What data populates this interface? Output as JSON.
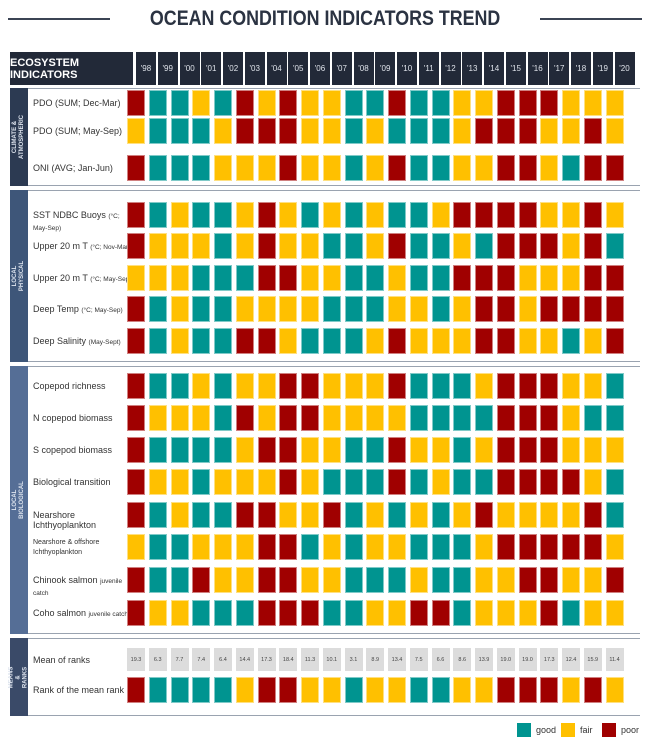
{
  "title": "OCEAN CONDITION INDICATORS TREND",
  "chart_data": {
    "type": "heatmap",
    "title": "OCEAN CONDITION INDICATORS TREND",
    "header_label": "ECOSYSTEM INDICATORS",
    "years": [
      "'98",
      "'99",
      "'00",
      "'01",
      "'02",
      "'03",
      "'04",
      "'05",
      "'06",
      "'07",
      "'08",
      "'09",
      "'10",
      "'11",
      "'12",
      "'13",
      "'14",
      "'15",
      "'16",
      "'17",
      "'18",
      "'19",
      "'20"
    ],
    "colors": {
      "good": "#009490",
      "fair": "#ffc000",
      "poor": "#a00000"
    },
    "legend": [
      {
        "key": "good",
        "label": "good"
      },
      {
        "key": "fair",
        "label": "fair"
      },
      {
        "key": "poor",
        "label": "poor"
      }
    ],
    "sections": [
      {
        "name": "CLIMATE & ATMOSPHERIC",
        "rows": [
          {
            "label": "PDO (SUM; Dec-Mar)",
            "sub": "",
            "values": [
              "poor",
              "good",
              "good",
              "fair",
              "good",
              "poor",
              "fair",
              "poor",
              "fair",
              "fair",
              "good",
              "good",
              "poor",
              "good",
              "good",
              "fair",
              "fair",
              "poor",
              "poor",
              "poor",
              "fair",
              "fair",
              "fair"
            ]
          },
          {
            "label": "PDO (SUM; May-Sep)",
            "sub": "",
            "values": [
              "fair",
              "good",
              "good",
              "good",
              "fair",
              "poor",
              "poor",
              "poor",
              "fair",
              "fair",
              "good",
              "fair",
              "good",
              "good",
              "good",
              "fair",
              "poor",
              "poor",
              "poor",
              "fair",
              "fair",
              "poor",
              "fair"
            ]
          },
          {
            "label": "ONI (AVG; Jan-Jun)",
            "sub": "",
            "values": [
              "poor",
              "good",
              "good",
              "good",
              "fair",
              "fair",
              "fair",
              "poor",
              "fair",
              "fair",
              "good",
              "fair",
              "poor",
              "good",
              "good",
              "fair",
              "fair",
              "poor",
              "poor",
              "fair",
              "good",
              "poor",
              "poor"
            ]
          }
        ]
      },
      {
        "name": "LOCAL PHYSICAL",
        "rows": [
          {
            "label": "SST NDBC Buoys",
            "sub": "(°C; May-Sep)",
            "values": [
              "poor",
              "good",
              "fair",
              "good",
              "good",
              "fair",
              "poor",
              "fair",
              "good",
              "fair",
              "good",
              "fair",
              "good",
              "good",
              "fair",
              "poor",
              "poor",
              "poor",
              "poor",
              "fair",
              "fair",
              "poor",
              "fair"
            ]
          },
          {
            "label": "Upper 20 m T",
            "sub": "(°C; Nov-Mar)",
            "values": [
              "poor",
              "fair",
              "fair",
              "fair",
              "good",
              "fair",
              "poor",
              "fair",
              "fair",
              "good",
              "good",
              "fair",
              "poor",
              "good",
              "good",
              "fair",
              "good",
              "poor",
              "poor",
              "poor",
              "fair",
              "poor",
              "good"
            ]
          },
          {
            "label": "Upper 20 m T",
            "sub": "(°C; May-Sep)",
            "values": [
              "fair",
              "fair",
              "fair",
              "good",
              "good",
              "good",
              "poor",
              "poor",
              "fair",
              "fair",
              "good",
              "good",
              "fair",
              "good",
              "good",
              "poor",
              "poor",
              "poor",
              "fair",
              "fair",
              "fair",
              "poor",
              "poor"
            ]
          },
          {
            "label": "Deep Temp",
            "sub": "(°C; May-Sep)",
            "values": [
              "poor",
              "good",
              "fair",
              "good",
              "good",
              "fair",
              "fair",
              "fair",
              "fair",
              "good",
              "good",
              "good",
              "fair",
              "fair",
              "good",
              "fair",
              "poor",
              "poor",
              "fair",
              "poor",
              "poor",
              "poor",
              "poor"
            ]
          },
          {
            "label": "Deep Salinity",
            "sub": "(May-Sept)",
            "values": [
              "poor",
              "good",
              "fair",
              "good",
              "good",
              "poor",
              "poor",
              "fair",
              "good",
              "good",
              "good",
              "fair",
              "poor",
              "fair",
              "fair",
              "fair",
              "poor",
              "poor",
              "fair",
              "fair",
              "good",
              "fair",
              "poor"
            ]
          }
        ]
      },
      {
        "name": "LOCAL BIOLOGICAL",
        "rows": [
          {
            "label": "Copepod richness",
            "sub": "",
            "values": [
              "poor",
              "good",
              "good",
              "fair",
              "good",
              "fair",
              "fair",
              "poor",
              "poor",
              "fair",
              "fair",
              "fair",
              "poor",
              "good",
              "good",
              "good",
              "fair",
              "poor",
              "poor",
              "poor",
              "fair",
              "fair",
              "good"
            ]
          },
          {
            "label": "N copepod biomass",
            "sub": "",
            "values": [
              "poor",
              "fair",
              "fair",
              "fair",
              "good",
              "poor",
              "fair",
              "poor",
              "poor",
              "fair",
              "fair",
              "fair",
              "fair",
              "good",
              "good",
              "good",
              "good",
              "poor",
              "poor",
              "poor",
              "fair",
              "good",
              "good"
            ]
          },
          {
            "label": "S copepod biomass",
            "sub": "",
            "values": [
              "poor",
              "good",
              "good",
              "good",
              "good",
              "fair",
              "poor",
              "poor",
              "fair",
              "fair",
              "good",
              "good",
              "poor",
              "fair",
              "fair",
              "good",
              "fair",
              "poor",
              "poor",
              "poor",
              "fair",
              "fair",
              "fair"
            ]
          },
          {
            "label": "Biological transition",
            "sub": "",
            "values": [
              "poor",
              "fair",
              "fair",
              "good",
              "fair",
              "fair",
              "fair",
              "poor",
              "fair",
              "good",
              "good",
              "good",
              "poor",
              "good",
              "fair",
              "good",
              "good",
              "poor",
              "poor",
              "poor",
              "poor",
              "fair",
              "good"
            ]
          },
          {
            "label": "Nearshore Ichthyoplankton",
            "sub": "",
            "values": [
              "poor",
              "good",
              "fair",
              "good",
              "good",
              "poor",
              "poor",
              "fair",
              "fair",
              "poor",
              "good",
              "fair",
              "good",
              "fair",
              "good",
              "fair",
              "poor",
              "fair",
              "fair",
              "fair",
              "fair",
              "poor",
              "good"
            ]
          },
          {
            "label": "Nearshore & offshore Ichthyoplankton",
            "sub": "",
            "values": [
              "fair",
              "good",
              "good",
              "fair",
              "fair",
              "fair",
              "poor",
              "poor",
              "good",
              "fair",
              "good",
              "fair",
              "fair",
              "good",
              "good",
              "good",
              "fair",
              "poor",
              "poor",
              "poor",
              "poor",
              "poor",
              "fair"
            ]
          },
          {
            "label": "Chinook salmon",
            "sub": "juvenile catch",
            "values": [
              "poor",
              "good",
              "good",
              "poor",
              "fair",
              "fair",
              "poor",
              "poor",
              "fair",
              "fair",
              "good",
              "good",
              "good",
              "fair",
              "good",
              "good",
              "fair",
              "fair",
              "poor",
              "poor",
              "fair",
              "fair",
              "poor"
            ]
          },
          {
            "label": "Coho salmon",
            "sub": "juvenile catch",
            "values": [
              "poor",
              "fair",
              "fair",
              "good",
              "good",
              "good",
              "poor",
              "poor",
              "poor",
              "good",
              "good",
              "fair",
              "fair",
              "poor",
              "poor",
              "good",
              "fair",
              "fair",
              "fair",
              "poor",
              "good",
              "fair",
              "fair"
            ]
          }
        ]
      },
      {
        "name": "MEANS & RANKS",
        "rows": [
          {
            "label": "Mean of ranks",
            "sub": "",
            "numbers": [
              "19.3",
              "6.3",
              "7.7",
              "7.4",
              "6.4",
              "14.4",
              "17.3",
              "18.4",
              "11.3",
              "10.1",
              "3.1",
              "8.9",
              "13.4",
              "7.5",
              "6.6",
              "8.6",
              "13.9",
              "19.0",
              "19.0",
              "17.3",
              "12.4",
              "15.9",
              "11.4"
            ]
          },
          {
            "label": "Rank of the mean rank",
            "sub": "",
            "values": [
              "poor",
              "good",
              "good",
              "good",
              "good",
              "fair",
              "poor",
              "poor",
              "fair",
              "fair",
              "good",
              "fair",
              "fair",
              "good",
              "good",
              "fair",
              "fair",
              "poor",
              "poor",
              "poor",
              "fair",
              "poor",
              "fair"
            ]
          }
        ]
      }
    ]
  }
}
